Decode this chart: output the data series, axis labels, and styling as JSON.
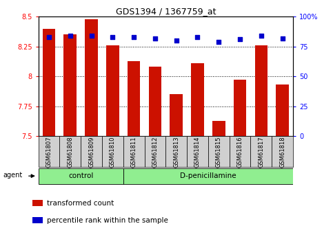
{
  "title": "GDS1394 / 1367759_at",
  "samples": [
    "GSM61807",
    "GSM61808",
    "GSM61809",
    "GSM61810",
    "GSM61811",
    "GSM61812",
    "GSM61813",
    "GSM61814",
    "GSM61815",
    "GSM61816",
    "GSM61817",
    "GSM61818"
  ],
  "bar_values": [
    8.4,
    8.35,
    8.48,
    8.26,
    8.13,
    8.08,
    7.85,
    8.11,
    7.63,
    7.97,
    8.26,
    7.93
  ],
  "percentile_values": [
    83,
    84,
    84,
    83,
    83,
    82,
    80,
    83,
    79,
    81,
    84,
    82
  ],
  "bar_color": "#cc1100",
  "dot_color": "#0000cc",
  "ymin": 7.5,
  "ymax": 8.5,
  "y_ticks": [
    7.5,
    7.75,
    8.0,
    8.25,
    8.5
  ],
  "y_tick_labels": [
    "7.5",
    "7.75",
    "8",
    "8.25",
    "8.5"
  ],
  "y2min": 0,
  "y2max": 100,
  "y2_ticks": [
    0,
    25,
    50,
    75,
    100
  ],
  "y2_labels": [
    "0",
    "25",
    "50",
    "75",
    "100%"
  ],
  "groups": [
    {
      "label": "control",
      "start": 0,
      "end": 3,
      "color": "#90ee90"
    },
    {
      "label": "D-penicillamine",
      "start": 4,
      "end": 11,
      "color": "#90ee90"
    }
  ],
  "agent_label": "agent",
  "legend_bar_label": "transformed count",
  "legend_dot_label": "percentile rank within the sample",
  "plot_bg_color": "#ffffff",
  "tick_cell_color": "#d0d0d0"
}
